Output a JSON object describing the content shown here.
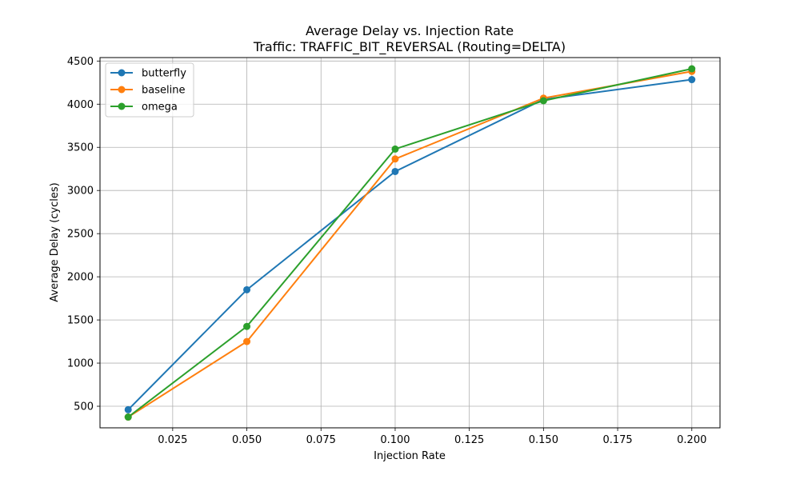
{
  "chart_data": {
    "type": "line",
    "title": "Average Delay vs. Injection Rate",
    "subtitle": "Traffic: TRAFFIC_BIT_REVERSAL (Routing=DELTA)",
    "xlabel": "Injection Rate",
    "ylabel": "Average Delay (cycles)",
    "x": [
      0.01,
      0.05,
      0.1,
      0.15,
      0.2
    ],
    "xlim": [
      0.0005,
      0.2095
    ],
    "ylim": [
      250,
      4540
    ],
    "xticks": [
      0.025,
      0.05,
      0.075,
      0.1,
      0.125,
      0.15,
      0.175,
      0.2
    ],
    "xtick_labels": [
      "0.025",
      "0.050",
      "0.075",
      "0.100",
      "0.125",
      "0.150",
      "0.175",
      "0.200"
    ],
    "yticks": [
      500,
      1000,
      1500,
      2000,
      2500,
      3000,
      3500,
      4000,
      4500
    ],
    "ytick_labels": [
      "500",
      "1000",
      "1500",
      "2000",
      "2500",
      "3000",
      "3500",
      "4000",
      "4500"
    ],
    "grid": true,
    "legend_position": "top-left",
    "marker": "circle",
    "series": [
      {
        "name": "butterfly",
        "color": "#1f77b4",
        "values": [
          460,
          1850,
          3220,
          4055,
          4285
        ]
      },
      {
        "name": "baseline",
        "color": "#ff7f0e",
        "values": [
          375,
          1250,
          3365,
          4070,
          4380
        ]
      },
      {
        "name": "omega",
        "color": "#2ca02c",
        "values": [
          375,
          1425,
          3480,
          4040,
          4410
        ]
      }
    ]
  }
}
